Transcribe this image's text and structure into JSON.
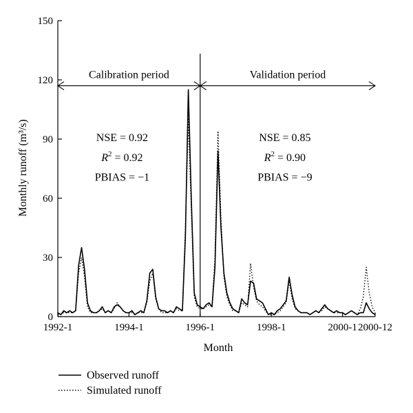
{
  "chart_data": {
    "type": "line",
    "xlabel": "Month",
    "ylabel": "Monthly runoff (m³/s)",
    "ylim": [
      0,
      150
    ],
    "yticks": [
      0,
      30,
      60,
      90,
      120,
      150
    ],
    "xtick_labels": [
      "1992-1",
      "1994-1",
      "1996-1",
      "1998-1",
      "2000-1",
      "2000-12"
    ],
    "x_start": "1992-1",
    "x_end": "2000-12",
    "grid": false,
    "legend_position": "bottom-left",
    "periods": [
      {
        "label": "Calibration period",
        "start": "1992-1",
        "end": "1995-12"
      },
      {
        "label": "Validation period",
        "start": "1996-1",
        "end": "2000-12"
      }
    ],
    "divider": "1996-1",
    "annotations": [
      {
        "period": "Calibration period",
        "nse": "NSE = 0.92",
        "r2_label": "R",
        "r2_sup": "2",
        "r2_value": " = 0.92",
        "pbias": "PBIAS = −1"
      },
      {
        "period": "Validation period",
        "nse": "NSE = 0.85",
        "r2_label": "R",
        "r2_sup": "2",
        "r2_value": " = 0.90",
        "pbias": "PBIAS = −9"
      }
    ],
    "series": [
      {
        "name": "Observed runoff",
        "style": "solid",
        "points": [
          [
            "1992-1",
            2
          ],
          [
            "1992-2",
            1
          ],
          [
            "1992-3",
            3
          ],
          [
            "1992-4",
            2
          ],
          [
            "1992-5",
            3
          ],
          [
            "1992-6",
            2
          ],
          [
            "1992-7",
            3
          ],
          [
            "1992-8",
            26
          ],
          [
            "1992-9",
            35
          ],
          [
            "1992-10",
            24
          ],
          [
            "1992-11",
            7
          ],
          [
            "1992-12",
            3
          ],
          [
            "1993-1",
            2
          ],
          [
            "1993-2",
            2
          ],
          [
            "1993-3",
            3
          ],
          [
            "1993-4",
            5
          ],
          [
            "1993-5",
            2
          ],
          [
            "1993-6",
            3
          ],
          [
            "1993-7",
            2
          ],
          [
            "1993-8",
            5
          ],
          [
            "1993-9",
            6
          ],
          [
            "1993-10",
            5
          ],
          [
            "1993-11",
            3
          ],
          [
            "1993-12",
            2
          ],
          [
            "1994-1",
            2
          ],
          [
            "1994-2",
            3
          ],
          [
            "1994-3",
            1
          ],
          [
            "1994-4",
            2
          ],
          [
            "1994-5",
            3
          ],
          [
            "1994-6",
            2
          ],
          [
            "1994-7",
            8
          ],
          [
            "1994-8",
            22
          ],
          [
            "1994-9",
            24
          ],
          [
            "1994-10",
            10
          ],
          [
            "1994-11",
            4
          ],
          [
            "1994-12",
            3
          ],
          [
            "1995-1",
            3
          ],
          [
            "1995-2",
            2
          ],
          [
            "1995-3",
            3
          ],
          [
            "1995-4",
            2
          ],
          [
            "1995-5",
            5
          ],
          [
            "1995-6",
            4
          ],
          [
            "1995-7",
            3
          ],
          [
            "1995-8",
            40
          ],
          [
            "1995-9",
            115
          ],
          [
            "1995-10",
            60
          ],
          [
            "1995-11",
            12
          ],
          [
            "1995-12",
            6
          ],
          [
            "1996-1",
            5
          ],
          [
            "1996-2",
            4
          ],
          [
            "1996-3",
            6
          ],
          [
            "1996-4",
            7
          ],
          [
            "1996-5",
            5
          ],
          [
            "1996-6",
            25
          ],
          [
            "1996-7",
            84
          ],
          [
            "1996-8",
            45
          ],
          [
            "1996-9",
            22
          ],
          [
            "1996-10",
            12
          ],
          [
            "1996-11",
            7
          ],
          [
            "1996-12",
            4
          ],
          [
            "1997-1",
            3
          ],
          [
            "1997-2",
            2
          ],
          [
            "1997-3",
            9
          ],
          [
            "1997-4",
            7
          ],
          [
            "1997-5",
            6
          ],
          [
            "1997-6",
            18
          ],
          [
            "1997-7",
            17
          ],
          [
            "1997-8",
            9
          ],
          [
            "1997-9",
            8
          ],
          [
            "1997-10",
            7
          ],
          [
            "1997-11",
            4
          ],
          [
            "1997-12",
            1
          ],
          [
            "1998-1",
            2
          ],
          [
            "1998-2",
            1
          ],
          [
            "1998-3",
            3
          ],
          [
            "1998-4",
            4
          ],
          [
            "1998-5",
            6
          ],
          [
            "1998-6",
            8
          ],
          [
            "1998-7",
            20
          ],
          [
            "1998-8",
            11
          ],
          [
            "1998-9",
            5
          ],
          [
            "1998-10",
            3
          ],
          [
            "1998-11",
            2
          ],
          [
            "1998-12",
            2
          ],
          [
            "1999-1",
            2
          ],
          [
            "1999-2",
            1
          ],
          [
            "1999-3",
            2
          ],
          [
            "1999-4",
            3
          ],
          [
            "1999-5",
            2
          ],
          [
            "1999-6",
            4
          ],
          [
            "1999-7",
            6
          ],
          [
            "1999-8",
            4
          ],
          [
            "1999-9",
            3
          ],
          [
            "1999-10",
            2
          ],
          [
            "1999-11",
            3
          ],
          [
            "1999-12",
            2
          ],
          [
            "2000-1",
            2
          ],
          [
            "2000-2",
            1
          ],
          [
            "2000-3",
            2
          ],
          [
            "2000-4",
            3
          ],
          [
            "2000-5",
            2
          ],
          [
            "2000-6",
            1
          ],
          [
            "2000-7",
            2
          ],
          [
            "2000-8",
            2
          ],
          [
            "2000-9",
            7
          ],
          [
            "2000-10",
            4
          ],
          [
            "2000-11",
            2
          ],
          [
            "2000-12",
            1
          ]
        ]
      },
      {
        "name": "Simulated runoff",
        "style": "dotted",
        "points": [
          [
            "1992-1",
            1
          ],
          [
            "1992-2",
            1
          ],
          [
            "1992-3",
            2
          ],
          [
            "1992-4",
            2
          ],
          [
            "1992-5",
            2
          ],
          [
            "1992-6",
            2
          ],
          [
            "1992-7",
            3
          ],
          [
            "1992-8",
            22
          ],
          [
            "1992-9",
            30
          ],
          [
            "1992-10",
            20
          ],
          [
            "1992-11",
            5
          ],
          [
            "1992-12",
            2
          ],
          [
            "1993-1",
            2
          ],
          [
            "1993-2",
            2
          ],
          [
            "1993-3",
            3
          ],
          [
            "1993-4",
            4
          ],
          [
            "1993-5",
            2
          ],
          [
            "1993-6",
            3
          ],
          [
            "1993-7",
            2
          ],
          [
            "1993-8",
            4
          ],
          [
            "1993-9",
            7
          ],
          [
            "1993-10",
            5
          ],
          [
            "1993-11",
            3
          ],
          [
            "1993-12",
            2
          ],
          [
            "1994-1",
            2
          ],
          [
            "1994-2",
            2
          ],
          [
            "1994-3",
            1
          ],
          [
            "1994-4",
            2
          ],
          [
            "1994-5",
            2
          ],
          [
            "1994-6",
            2
          ],
          [
            "1994-7",
            7
          ],
          [
            "1994-8",
            18
          ],
          [
            "1994-9",
            22
          ],
          [
            "1994-10",
            9
          ],
          [
            "1994-11",
            4
          ],
          [
            "1994-12",
            2
          ],
          [
            "1995-1",
            2
          ],
          [
            "1995-2",
            2
          ],
          [
            "1995-3",
            3
          ],
          [
            "1995-4",
            2
          ],
          [
            "1995-5",
            4
          ],
          [
            "1995-6",
            3
          ],
          [
            "1995-7",
            3
          ],
          [
            "1995-8",
            45
          ],
          [
            "1995-9",
            100
          ],
          [
            "1995-10",
            55
          ],
          [
            "1995-11",
            10
          ],
          [
            "1995-12",
            5
          ],
          [
            "1996-1",
            4
          ],
          [
            "1996-2",
            4
          ],
          [
            "1996-3",
            5
          ],
          [
            "1996-4",
            6
          ],
          [
            "1996-5",
            5
          ],
          [
            "1996-6",
            30
          ],
          [
            "1996-7",
            94
          ],
          [
            "1996-8",
            50
          ],
          [
            "1996-9",
            20
          ],
          [
            "1996-10",
            10
          ],
          [
            "1996-11",
            6
          ],
          [
            "1996-12",
            3
          ],
          [
            "1997-1",
            3
          ],
          [
            "1997-2",
            2
          ],
          [
            "1997-3",
            7
          ],
          [
            "1997-4",
            6
          ],
          [
            "1997-5",
            5
          ],
          [
            "1997-6",
            27
          ],
          [
            "1997-7",
            15
          ],
          [
            "1997-8",
            8
          ],
          [
            "1997-9",
            6
          ],
          [
            "1997-10",
            5
          ],
          [
            "1997-11",
            3
          ],
          [
            "1997-12",
            1
          ],
          [
            "1998-1",
            1
          ],
          [
            "1998-2",
            1
          ],
          [
            "1998-3",
            2
          ],
          [
            "1998-4",
            3
          ],
          [
            "1998-5",
            5
          ],
          [
            "1998-6",
            7
          ],
          [
            "1998-7",
            18
          ],
          [
            "1998-8",
            9
          ],
          [
            "1998-9",
            4
          ],
          [
            "1998-10",
            3
          ],
          [
            "1998-11",
            2
          ],
          [
            "1998-12",
            2
          ],
          [
            "1999-1",
            2
          ],
          [
            "1999-2",
            1
          ],
          [
            "1999-3",
            2
          ],
          [
            "1999-4",
            3
          ],
          [
            "1999-5",
            2
          ],
          [
            "1999-6",
            3
          ],
          [
            "1999-7",
            5
          ],
          [
            "1999-8",
            4
          ],
          [
            "1999-9",
            3
          ],
          [
            "1999-10",
            2
          ],
          [
            "1999-11",
            2
          ],
          [
            "1999-12",
            2
          ],
          [
            "2000-1",
            2
          ],
          [
            "2000-2",
            1
          ],
          [
            "2000-3",
            2
          ],
          [
            "2000-4",
            3
          ],
          [
            "2000-5",
            2
          ],
          [
            "2000-6",
            1
          ],
          [
            "2000-7",
            4
          ],
          [
            "2000-8",
            10
          ],
          [
            "2000-9",
            25
          ],
          [
            "2000-10",
            12
          ],
          [
            "2000-11",
            5
          ],
          [
            "2000-12",
            2
          ]
        ]
      }
    ]
  }
}
